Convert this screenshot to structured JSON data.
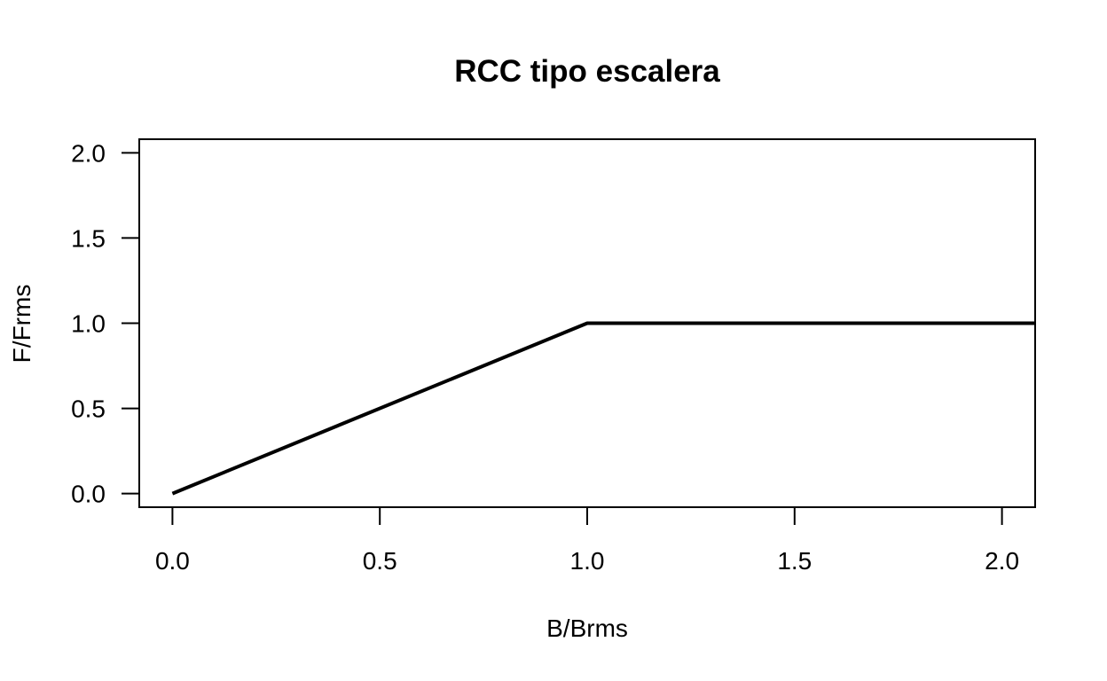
{
  "chart_data": {
    "type": "line",
    "title": "RCC tipo escalera",
    "xlabel": "B/Brms",
    "ylabel": "F/Frms",
    "xlim": [
      -0.08,
      2.08
    ],
    "ylim": [
      -0.08,
      2.08
    ],
    "x_ticks": [
      0.0,
      0.5,
      1.0,
      1.5,
      2.0
    ],
    "x_tick_labels": [
      "0.0",
      "0.5",
      "1.0",
      "1.5",
      "2.0"
    ],
    "y_ticks": [
      0.0,
      0.5,
      1.0,
      1.5,
      2.0
    ],
    "y_tick_labels": [
      "0.0",
      "0.5",
      "1.0",
      "1.5",
      "2.0"
    ],
    "grid": false,
    "series": [
      {
        "color": "#000000",
        "x": [
          0.0,
          1.0,
          2.08
        ],
        "y": [
          0.0,
          1.0,
          1.0
        ]
      }
    ]
  }
}
